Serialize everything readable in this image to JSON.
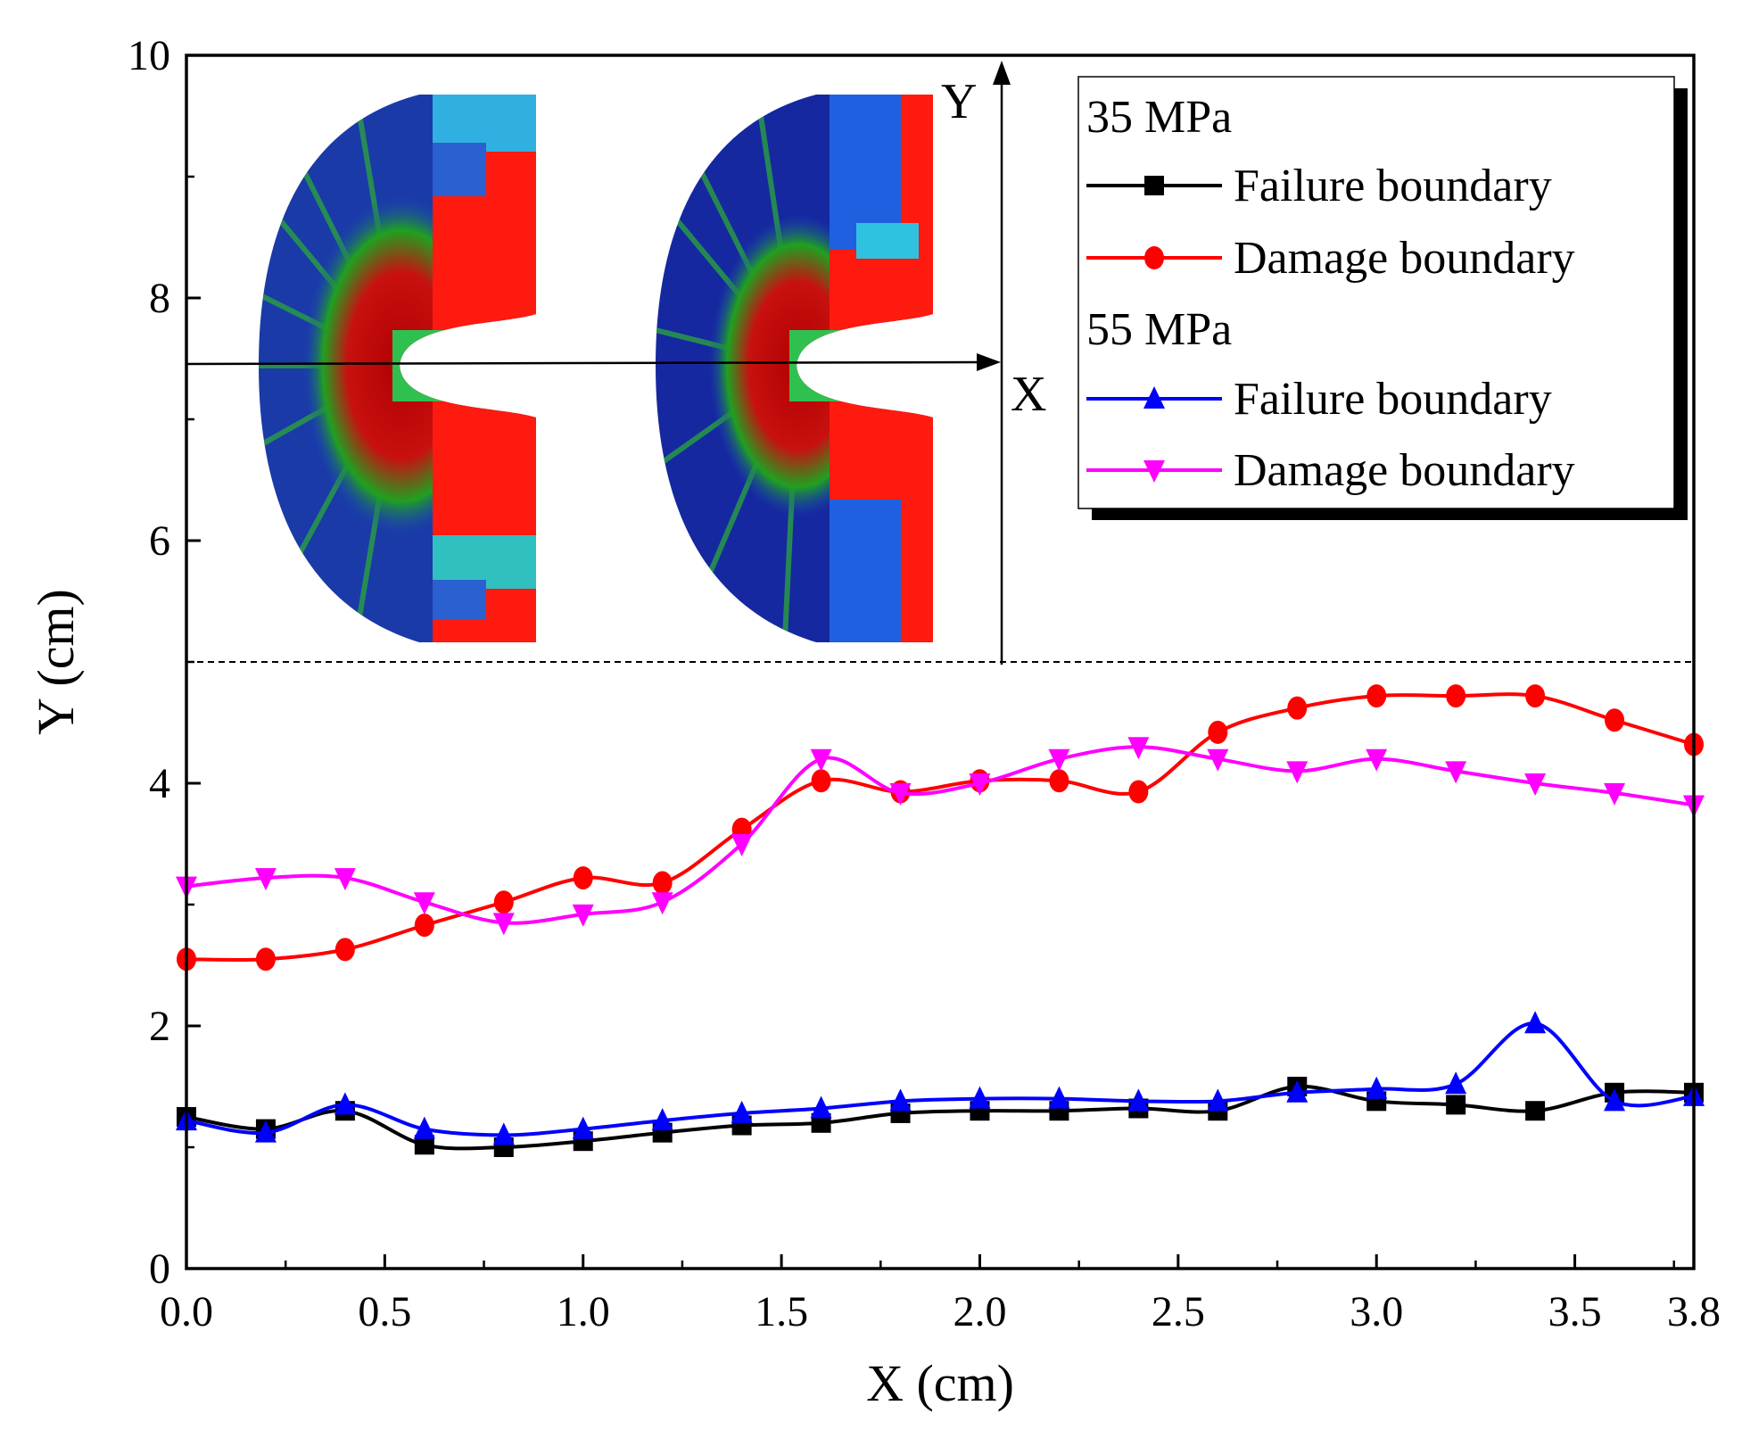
{
  "chart_data": {
    "type": "line",
    "title": "",
    "xlabel": "X (cm)",
    "ylabel": "Y (cm)",
    "xlim": [
      0,
      3.8
    ],
    "ylim": [
      0,
      10
    ],
    "xticks": [
      0.0,
      0.5,
      1.0,
      1.5,
      2.0,
      2.5,
      3.0,
      3.5,
      3.8
    ],
    "xtick_labels": [
      "0.0",
      "0.5",
      "1.0",
      "1.5",
      "2.0",
      "2.5",
      "3.0",
      "3.5",
      "3.8"
    ],
    "yticks": [
      0,
      2,
      4,
      6,
      8,
      10
    ],
    "ytick_labels": [
      "0",
      "2",
      "4",
      "6",
      "8",
      "10"
    ],
    "grid": false,
    "reference_line_y": 5,
    "x": [
      0.0,
      0.2,
      0.4,
      0.6,
      0.8,
      1.0,
      1.2,
      1.4,
      1.6,
      1.8,
      2.0,
      2.2,
      2.4,
      2.6,
      2.8,
      3.0,
      3.2,
      3.4,
      3.6,
      3.8
    ],
    "series": [
      {
        "group": "35 MPa",
        "name": "Failure boundary",
        "color": "#000000",
        "marker": "square",
        "values": [
          1.25,
          1.15,
          1.3,
          1.02,
          1.0,
          1.05,
          1.12,
          1.18,
          1.2,
          1.28,
          1.3,
          1.3,
          1.32,
          1.3,
          1.5,
          1.38,
          1.35,
          1.3,
          1.45,
          1.45
        ]
      },
      {
        "group": "35 MPa",
        "name": "Damage boundary",
        "color": "#ff0000",
        "marker": "circle",
        "values": [
          2.55,
          2.55,
          2.63,
          2.83,
          3.02,
          3.22,
          3.18,
          3.62,
          4.02,
          3.93,
          4.02,
          4.02,
          3.93,
          4.42,
          4.62,
          4.72,
          4.72,
          4.72,
          4.52,
          4.32
        ]
      },
      {
        "group": "55 MPa",
        "name": "Failure boundary",
        "color": "#0000ff",
        "marker": "triangle-up",
        "values": [
          1.22,
          1.12,
          1.35,
          1.15,
          1.1,
          1.15,
          1.22,
          1.28,
          1.32,
          1.38,
          1.4,
          1.4,
          1.38,
          1.38,
          1.45,
          1.48,
          1.52,
          2.02,
          1.38,
          1.42
        ]
      },
      {
        "group": "55 MPa",
        "name": "Damage boundary",
        "color": "#ff00ff",
        "marker": "triangle-down",
        "values": [
          3.15,
          3.22,
          3.22,
          3.02,
          2.85,
          2.92,
          3.02,
          3.5,
          4.2,
          3.92,
          4.0,
          4.2,
          4.3,
          4.2,
          4.1,
          4.2,
          4.1,
          4.0,
          3.92,
          3.82
        ]
      }
    ],
    "legend": {
      "placement": "top-right",
      "groups": [
        "35 MPa",
        "55 MPa"
      ],
      "entries": [
        "Failure boundary",
        "Damage boundary",
        "Failure boundary",
        "Damage boundary"
      ]
    },
    "inset": {
      "x_label": "X",
      "y_label": "Y"
    }
  }
}
